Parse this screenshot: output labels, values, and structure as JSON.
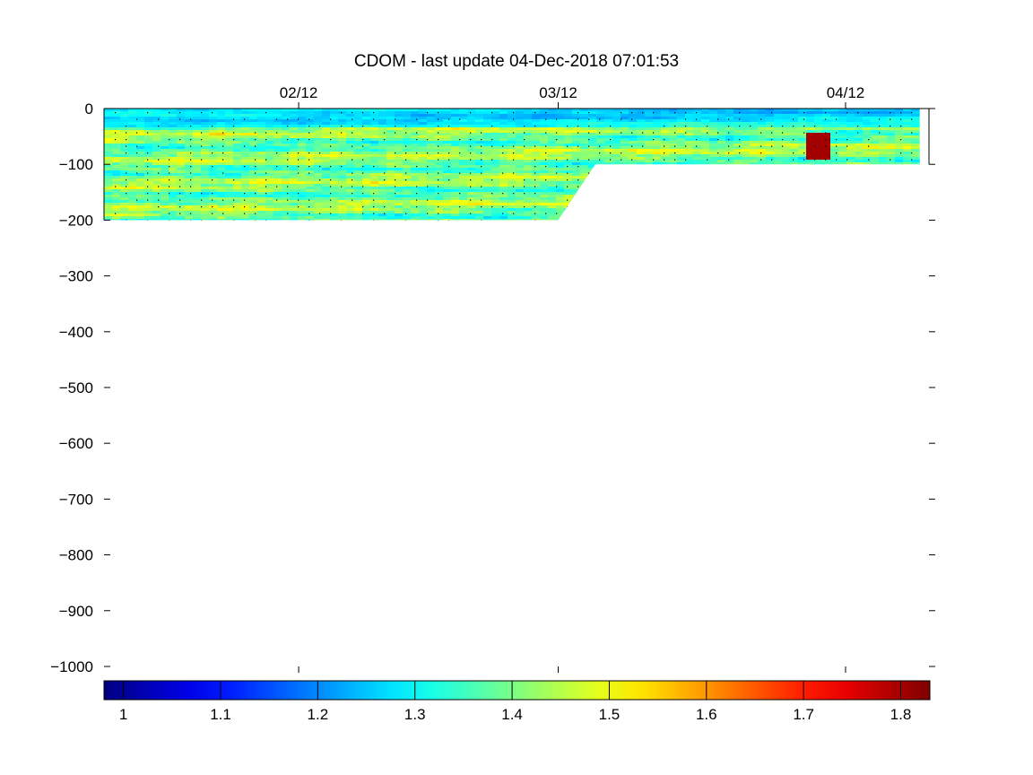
{
  "chart_data": {
    "type": "heatmap",
    "title": "CDOM - last update 04-Dec-2018 07:01:53",
    "xlabel": "",
    "ylabel": "",
    "x_ticks": [
      "02/12",
      "03/12",
      "04/12"
    ],
    "x_tick_dates": [
      "2018-02-12",
      "2018-03-12",
      "2018-04-12"
    ],
    "xlim": [
      "2018-01-22",
      "2018-04-21"
    ],
    "y_ticks": [
      "0",
      "−100",
      "−200",
      "−300",
      "−400",
      "−500",
      "−600",
      "−700",
      "−800",
      "−900",
      "−1000"
    ],
    "y_tick_values": [
      0,
      -100,
      -200,
      -300,
      -400,
      -500,
      -600,
      -700,
      -800,
      -900,
      -1000
    ],
    "ylim": [
      -1000,
      0
    ],
    "coverage": [
      {
        "date": "2018-01-22",
        "min_depth": -200
      },
      {
        "date": "2018-03-12",
        "min_depth": -200
      },
      {
        "date": "2018-03-16",
        "min_depth": -100
      },
      {
        "date": "2018-04-20",
        "min_depth": -100
      }
    ],
    "colorbar": {
      "colormap": "jet",
      "range": [
        0.98,
        1.83
      ],
      "ticks": [
        "1",
        "1.1",
        "1.2",
        "1.3",
        "1.4",
        "1.5",
        "1.6",
        "1.7",
        "1.8"
      ],
      "tick_values": [
        1.0,
        1.1,
        1.2,
        1.3,
        1.4,
        1.5,
        1.6,
        1.7,
        1.8
      ]
    },
    "typical_value_range": [
      1.3,
      1.5
    ],
    "features": [
      {
        "description": "lower values near surface",
        "depth_range": [
          -30,
          0
        ],
        "value": 1.2
      },
      {
        "description": "high anomaly near 04/12",
        "date_range": [
          "2018-04-07",
          "2018-04-10"
        ],
        "depth_range": [
          -90,
          -40
        ],
        "value": 1.8
      }
    ],
    "grid": false
  }
}
